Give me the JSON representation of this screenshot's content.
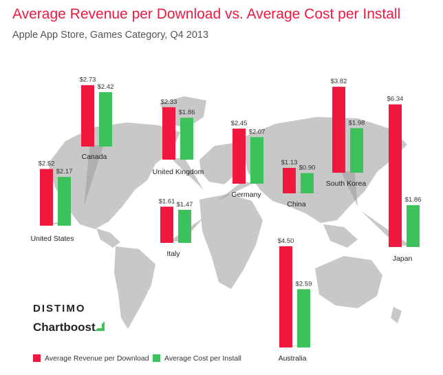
{
  "header": {
    "title": "Average Revenue per Download vs. Average Cost per Install",
    "subtitle": "Apple App Store, Games Category, Q4 2013"
  },
  "logos": {
    "distimo": "DISTIMO",
    "chartboost": "Chartboost"
  },
  "colors": {
    "revenue": "#f0183f",
    "cost": "#3dc15d",
    "map": "#c8c8c8"
  },
  "chart_data": {
    "type": "bar",
    "title": "Average Revenue per Download vs. Average Cost per Install",
    "subtitle": "Apple App Store, Games Category, Q4 2013",
    "categories": [
      "United States",
      "Canada",
      "United Kingdom",
      "Germany",
      "Italy",
      "China",
      "South Korea",
      "Japan",
      "Australia"
    ],
    "series": [
      {
        "name": "Average Revenue per Download",
        "values": [
          2.52,
          2.73,
          2.33,
          2.45,
          1.61,
          1.13,
          3.82,
          6.34,
          4.5
        ],
        "labels": [
          "$2.52",
          "$2.73",
          "$2.33",
          "$2.45",
          "$1.61",
          "$1.13",
          "$3.82",
          "$6.34",
          "$4.50"
        ]
      },
      {
        "name": "Average Cost per Install",
        "values": [
          2.17,
          2.42,
          1.86,
          2.07,
          1.47,
          0.9,
          1.98,
          1.86,
          2.59
        ],
        "labels": [
          "$2.17",
          "$2.42",
          "$1.86",
          "$2.07",
          "$1.47",
          "$0.90",
          "$1.98",
          "$1.86",
          "$2.59"
        ]
      }
    ],
    "legend": "bottom-left",
    "xlabel": "",
    "ylabel": ""
  }
}
